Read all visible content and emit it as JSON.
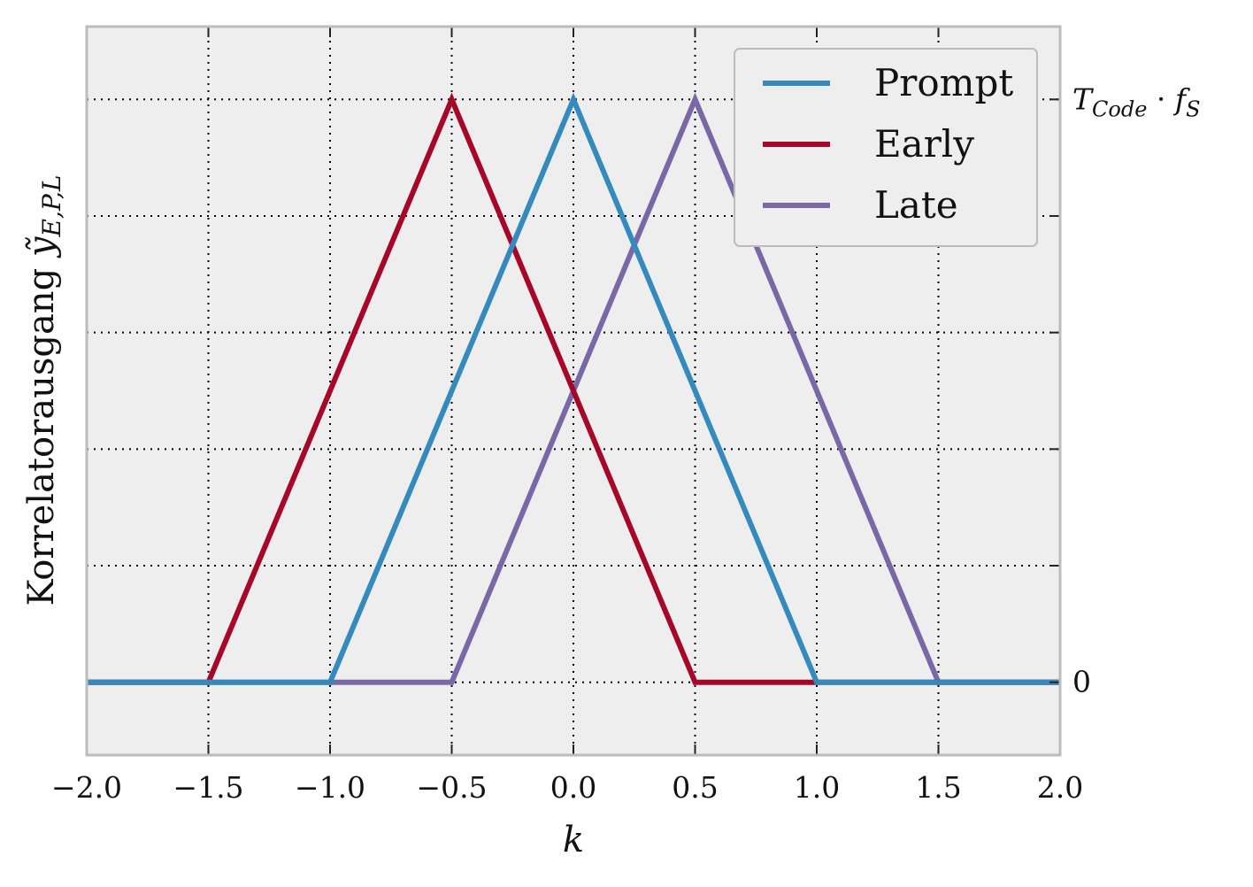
{
  "chart_data": {
    "type": "line",
    "xlabel": "k",
    "ylabel": {
      "text": "Korrelatorausgang",
      "symbol": "ỹ",
      "subscript": "E,P,L"
    },
    "xlim": [
      -2.0,
      2.0
    ],
    "ylim": [
      -0.125,
      1.125
    ],
    "x_ticks": [
      -2.0,
      -1.5,
      -1.0,
      -0.5,
      0.0,
      0.5,
      1.0,
      1.5,
      2.0
    ],
    "x_tick_labels": [
      "−2.0",
      "−1.5",
      "−1.0",
      "−0.5",
      "0.0",
      "0.5",
      "1.0",
      "1.5",
      "2.0"
    ],
    "y_ticks": [
      0,
      0.2,
      0.4,
      0.6,
      0.8,
      1.0
    ],
    "right_axis_labels": [
      {
        "value": 0,
        "text": "0"
      },
      {
        "value": 1.0,
        "math_main": "T",
        "math_sub": "Code",
        "math_op": " · ",
        "math_main2": "f",
        "math_sub2": "S"
      }
    ],
    "grid": true,
    "legend_position": "top-right",
    "series": [
      {
        "name": "Prompt",
        "color": "#348ABD",
        "x": [
          -2.0,
          -1.0,
          0.0,
          1.0,
          2.0
        ],
        "y": [
          0,
          0,
          1,
          0,
          0
        ]
      },
      {
        "name": "Early",
        "color": "#A60628",
        "x": [
          -2.0,
          -1.5,
          -0.5,
          0.5,
          2.0
        ],
        "y": [
          0,
          0,
          1,
          0,
          0
        ]
      },
      {
        "name": "Late",
        "color": "#7A68A6",
        "x": [
          -2.0,
          -0.5,
          0.5,
          1.5,
          2.0
        ],
        "y": [
          0,
          0,
          1,
          0,
          0
        ]
      }
    ]
  }
}
